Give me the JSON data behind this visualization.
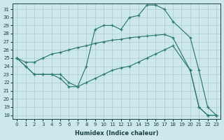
{
  "xlabel": "Humidex (Indice chaleur)",
  "bg_color": "#cce8ea",
  "grid_color": "#aacccc",
  "line_color": "#2e7b6e",
  "xlim_min": -0.5,
  "xlim_max": 23.5,
  "ylim_min": 17.5,
  "ylim_max": 31.7,
  "yticks": [
    18,
    19,
    20,
    21,
    22,
    23,
    24,
    25,
    26,
    27,
    28,
    29,
    30,
    31
  ],
  "xticks": [
    0,
    1,
    2,
    3,
    4,
    5,
    6,
    7,
    8,
    9,
    10,
    11,
    12,
    13,
    14,
    15,
    16,
    17,
    18,
    19,
    20,
    21,
    22,
    23
  ],
  "line1_x": [
    0,
    1,
    2,
    3,
    4,
    5,
    6,
    7,
    8,
    9,
    10,
    11,
    12,
    13,
    14,
    15,
    16,
    17,
    18,
    20,
    21,
    22,
    23
  ],
  "line1_y": [
    25,
    24,
    23,
    23,
    23,
    23,
    22,
    21.5,
    24,
    28.5,
    29,
    29,
    28.5,
    30,
    30.2,
    31.5,
    31.5,
    31,
    29.5,
    27.5,
    23.5,
    19,
    18
  ],
  "line2_x": [
    0,
    1,
    2,
    3,
    4,
    5,
    6,
    7,
    8,
    9,
    10,
    11,
    12,
    13,
    14,
    15,
    16,
    17,
    18,
    20,
    21,
    22,
    23
  ],
  "line2_y": [
    25,
    24.5,
    24.5,
    25,
    25.5,
    25.7,
    26,
    26.3,
    26.5,
    26.8,
    27,
    27.2,
    27.3,
    27.5,
    27.6,
    27.7,
    27.8,
    27.9,
    27.5,
    23.5,
    19,
    18,
    18
  ],
  "line3_x": [
    0,
    1,
    2,
    3,
    4,
    5,
    6,
    7,
    8,
    9,
    10,
    11,
    12,
    13,
    14,
    15,
    16,
    17,
    18,
    20,
    21,
    22,
    23
  ],
  "line3_y": [
    25,
    24,
    23,
    23,
    23,
    22.5,
    21.5,
    21.5,
    22,
    22.5,
    23,
    23.5,
    23.8,
    24,
    24.5,
    25,
    25.5,
    26,
    26.5,
    23.5,
    19,
    18,
    18
  ]
}
